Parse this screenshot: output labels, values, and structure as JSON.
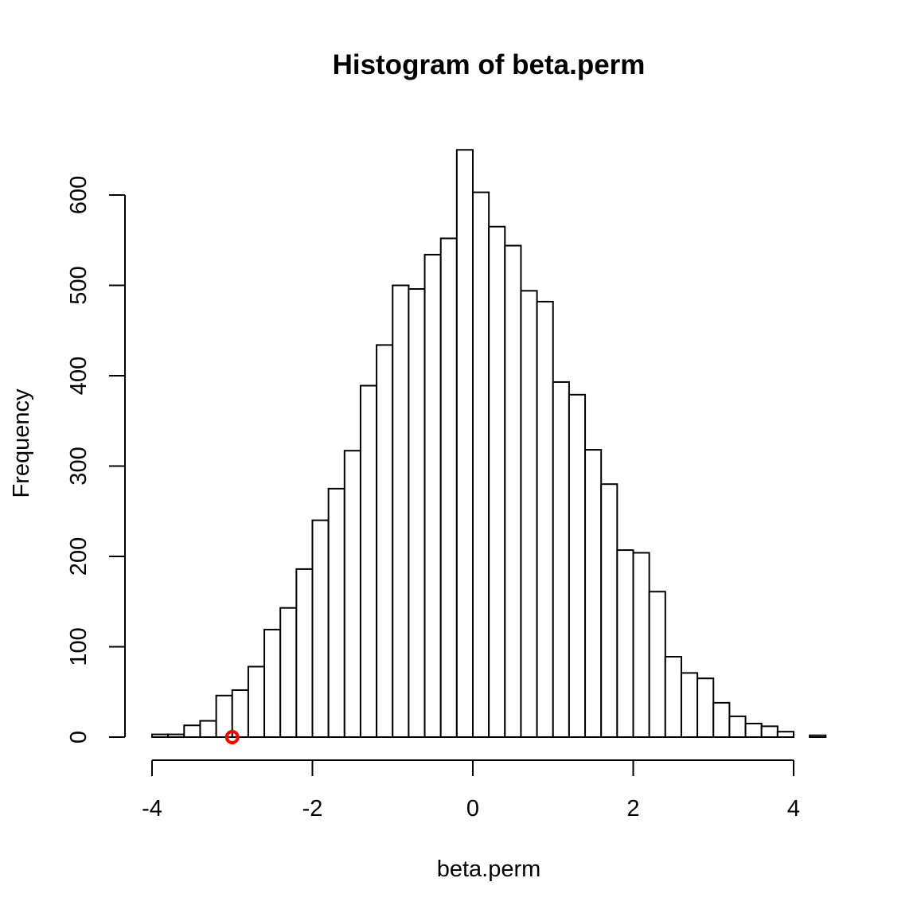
{
  "chart_data": {
    "type": "histogram",
    "title": "Histogram of beta.perm",
    "xlabel": "beta.perm",
    "ylabel": "Frequency",
    "xlim": [
      -4,
      4.4
    ],
    "ylim": [
      0,
      650
    ],
    "x_ticks": [
      -4,
      -2,
      0,
      2,
      4
    ],
    "x_tick_labels": [
      "-4",
      "-2",
      "0",
      "2",
      "4"
    ],
    "y_ticks": [
      0,
      100,
      200,
      300,
      400,
      500,
      600
    ],
    "y_tick_labels": [
      "0",
      "100",
      "200",
      "300",
      "400",
      "500",
      "600"
    ],
    "bin_width": 0.2,
    "bin_start": -4.0,
    "counts": [
      3,
      3,
      13,
      18,
      46,
      52,
      78,
      119,
      143,
      186,
      240,
      275,
      317,
      389,
      434,
      500,
      496,
      534,
      552,
      650,
      603,
      565,
      544,
      494,
      482,
      393,
      379,
      318,
      280,
      207,
      204,
      161,
      89,
      71,
      65,
      38,
      23,
      15,
      12,
      6,
      0,
      2
    ],
    "observed_point": {
      "x": -3.0,
      "y": 0
    },
    "colors": {
      "bar_fill": "#ffffff",
      "bar_stroke": "#000000",
      "point": "#ff0000"
    }
  }
}
